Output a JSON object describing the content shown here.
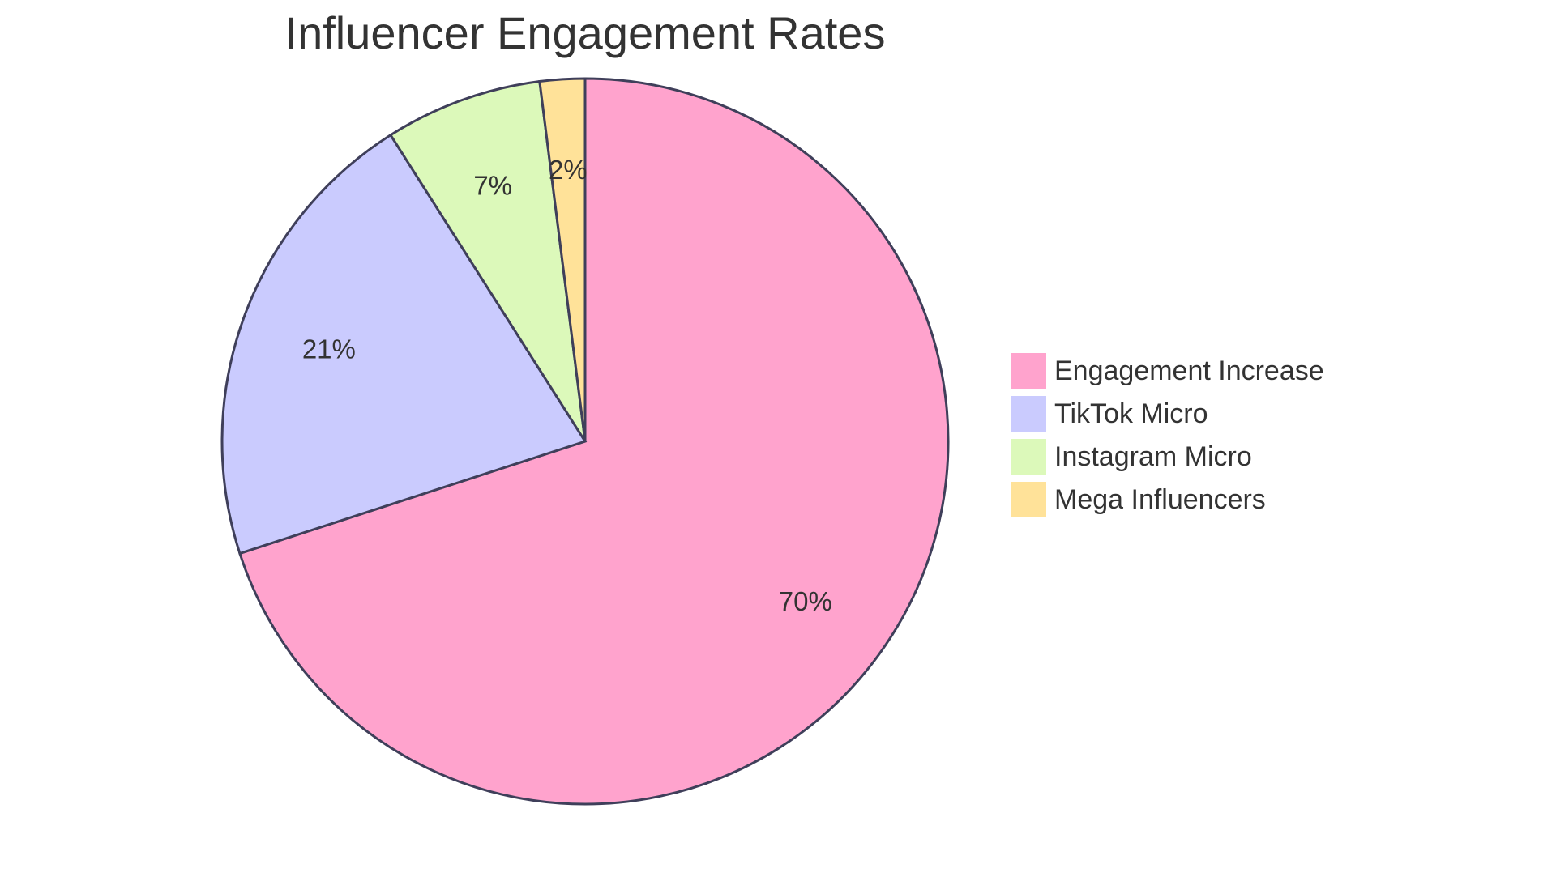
{
  "chart_data": {
    "type": "pie",
    "title": "Influencer Engagement Rates",
    "slices": [
      {
        "label": "Engagement Increase",
        "value": 70,
        "display": "70%",
        "color": "#FFA3CD"
      },
      {
        "label": "TikTok Micro",
        "value": 21,
        "display": "21%",
        "color": "#CACBFE"
      },
      {
        "label": "Instagram Micro",
        "value": 7,
        "display": "7%",
        "color": "#DCF9BA"
      },
      {
        "label": "Mega Influencers",
        "value": 2,
        "display": "2%",
        "color": "#FFE299"
      }
    ],
    "legend_position": "right",
    "start_angle_deg": 0,
    "direction": "clockwise",
    "stroke_color": "#3f3f5a"
  }
}
